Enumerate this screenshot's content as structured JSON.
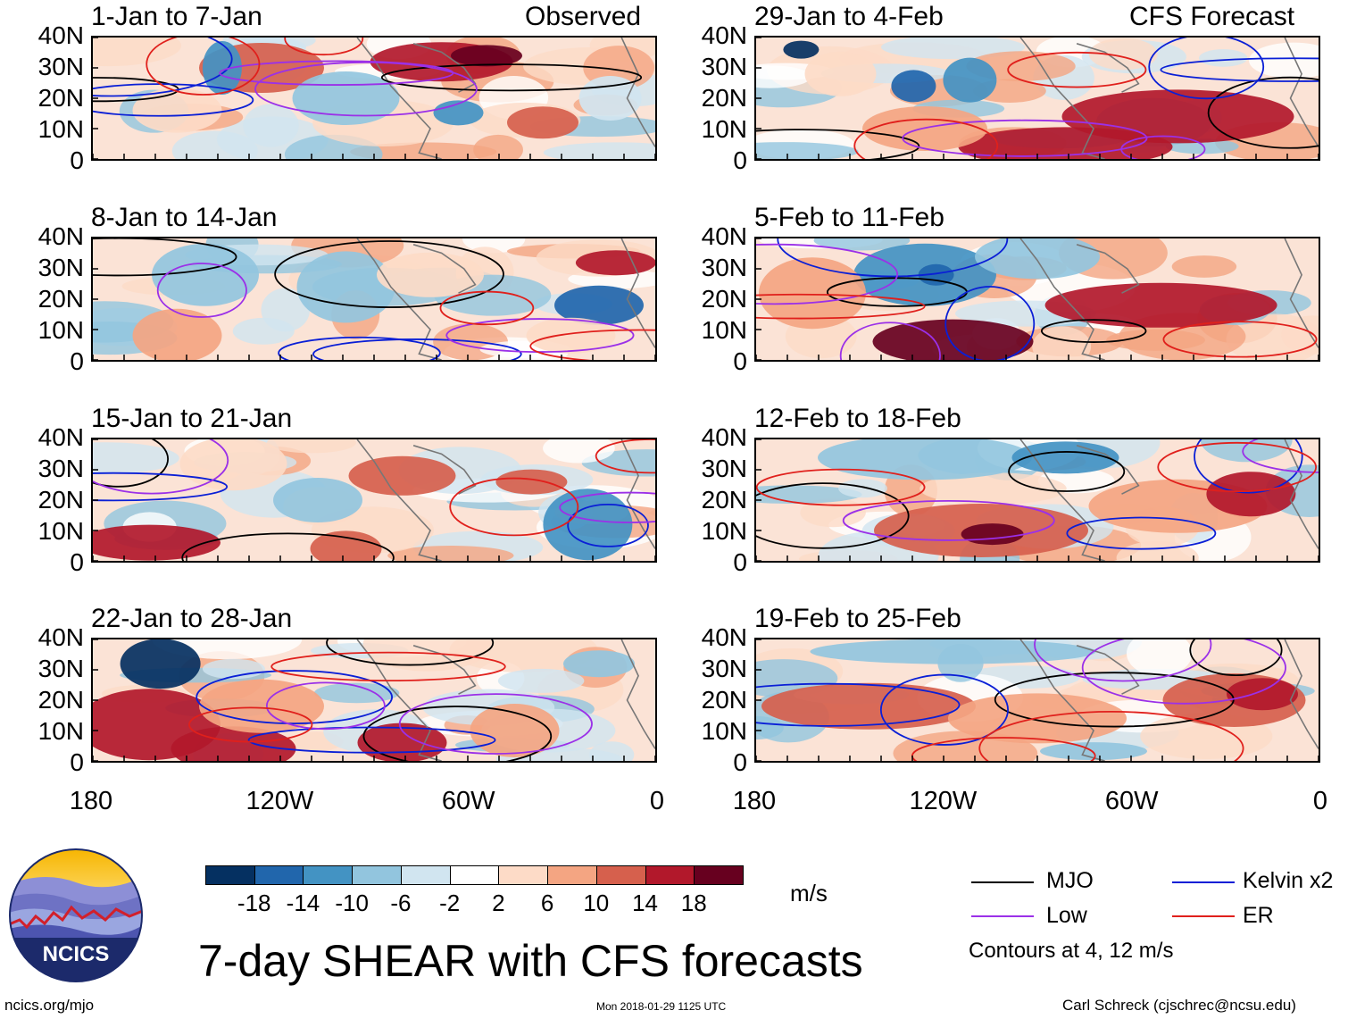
{
  "chart_data": {
    "type": "heatmap",
    "title": "7-day SHEAR with CFS forecasts",
    "units": "m/s",
    "region": {
      "lon_range": [
        -180,
        0
      ],
      "lat_range": [
        0,
        40
      ]
    },
    "x_ticks": [
      "180",
      "120W",
      "60W",
      "0"
    ],
    "y_ticks": [
      "40N",
      "30N",
      "20N",
      "10N",
      "0"
    ],
    "columns": [
      {
        "label": "Observed",
        "panels": [
          "1-Jan to 7-Jan",
          "8-Jan to 14-Jan",
          "15-Jan to 21-Jan",
          "22-Jan to 28-Jan"
        ]
      },
      {
        "label": "CFS Forecast",
        "panels": [
          "29-Jan to 4-Feb",
          "5-Feb to 11-Feb",
          "12-Feb to 18-Feb",
          "19-Feb to 25-Feb"
        ]
      }
    ],
    "colorbar": {
      "labels": [
        "-18",
        "-14",
        "-10",
        "-6",
        "-2",
        "2",
        "6",
        "10",
        "14",
        "18"
      ],
      "colors": [
        "#053061",
        "#2166ac",
        "#4393c3",
        "#92c5de",
        "#d1e5f0",
        "#ffffff",
        "#fddbc7",
        "#f4a582",
        "#d6604d",
        "#b2182b",
        "#67001f"
      ]
    },
    "legend": [
      {
        "name": "MJO",
        "color": "#000000"
      },
      {
        "name": "Kelvin x2",
        "color": "#0a1fd6"
      },
      {
        "name": "Low",
        "color": "#9b30e8"
      },
      {
        "name": "ER",
        "color": "#e0201c"
      }
    ],
    "contour_note": "Contours at 4, 12 m/s"
  },
  "footer": {
    "logo_text": "NCICS",
    "url": "ncics.org/mjo",
    "timestamp": "Mon 2018-01-29 1125 UTC",
    "author": "Carl Schreck (cjschrec@ncsu.edu)"
  }
}
